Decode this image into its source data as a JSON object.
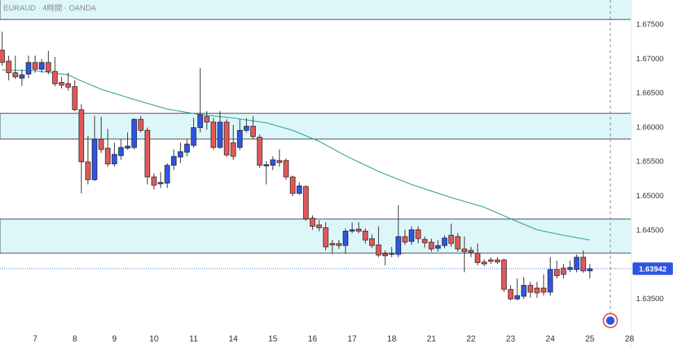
{
  "chart_data": {
    "type": "candlestick",
    "title": "EURAUD · 4時間 · OANDA",
    "up_color": "#2f55e0",
    "down_color": "#e25757",
    "open": [
      1.6713,
      1.6697,
      1.668,
      1.6672,
      1.6678,
      1.6695,
      1.6685,
      1.6695,
      1.6682,
      1.6666,
      1.6664,
      1.666,
      1.6626,
      1.655,
      1.6524,
      1.6583,
      1.657,
      1.6547,
      1.6559,
      1.657,
      1.6571,
      1.6612,
      1.6596,
      1.6528,
      1.6518,
      1.6519,
      1.6545,
      1.6557,
      1.6564,
      1.6574,
      1.66,
      1.6616,
      1.6608,
      1.6571,
      1.6608,
      1.6578,
      1.6571,
      1.6596,
      1.6602,
      1.6586,
      1.6544,
      1.6545,
      1.6552,
      1.6552,
      1.6528,
      1.6504,
      1.6514,
      1.6468,
      1.6458,
      1.6454,
      1.6431,
      1.6431,
      1.6428,
      1.6449,
      1.6452,
      1.6449,
      1.6438,
      1.6429,
      1.6416,
      1.6415,
      1.6415,
      1.6441,
      1.6434,
      1.6451,
      1.6437,
      1.6433,
      1.6424,
      1.6428,
      1.6443,
      1.6441,
      1.6423,
      1.6421,
      1.6417,
      1.6404,
      1.6407,
      1.6407,
      1.6407,
      1.6364,
      1.635,
      1.6354,
      1.637,
      1.6366,
      1.6366,
      1.636,
      1.6393,
      1.6395,
      1.6393,
      1.6393,
      1.6411,
      1.6391
    ],
    "high": [
      1.674,
      1.6705,
      1.6705,
      1.6685,
      1.6705,
      1.6705,
      1.67,
      1.6712,
      1.6703,
      1.6674,
      1.668,
      1.6669,
      1.6634,
      1.6588,
      1.6617,
      1.6616,
      1.6598,
      1.6578,
      1.6583,
      1.6593,
      1.6614,
      1.6617,
      1.66,
      1.6533,
      1.6535,
      1.6548,
      1.6568,
      1.6578,
      1.6583,
      1.6614,
      1.6687,
      1.6624,
      1.6614,
      1.6624,
      1.6612,
      1.6604,
      1.6612,
      1.6614,
      1.6617,
      1.659,
      1.6551,
      1.6558,
      1.6568,
      1.6555,
      1.653,
      1.652,
      1.6516,
      1.6472,
      1.6465,
      1.6462,
      1.6436,
      1.6436,
      1.6453,
      1.6462,
      1.6462,
      1.6453,
      1.6444,
      1.6456,
      1.6421,
      1.6426,
      1.6487,
      1.6451,
      1.6456,
      1.6456,
      1.6441,
      1.6438,
      1.6436,
      1.6443,
      1.646,
      1.6446,
      1.6441,
      1.6426,
      1.6431,
      1.6408,
      1.6411,
      1.6411,
      1.6409,
      1.637,
      1.638,
      1.6382,
      1.6375,
      1.6375,
      1.6386,
      1.6411,
      1.6406,
      1.6401,
      1.6406,
      1.6415,
      1.6421,
      1.6401
    ],
    "low": [
      1.669,
      1.6669,
      1.6671,
      1.6661,
      1.6672,
      1.668,
      1.668,
      1.6678,
      1.666,
      1.6657,
      1.6654,
      1.6624,
      1.6504,
      1.6517,
      1.6522,
      1.6563,
      1.6543,
      1.6543,
      1.6553,
      1.6568,
      1.6568,
      1.6593,
      1.6517,
      1.651,
      1.6512,
      1.6512,
      1.6538,
      1.6548,
      1.6558,
      1.6571,
      1.6593,
      1.6597,
      1.6568,
      1.6569,
      1.6557,
      1.6553,
      1.6567,
      1.6593,
      1.6583,
      1.6541,
      1.6517,
      1.6538,
      1.6543,
      1.6524,
      1.65,
      1.6502,
      1.6464,
      1.6451,
      1.6449,
      1.6421,
      1.6416,
      1.6423,
      1.6416,
      1.6446,
      1.6446,
      1.6431,
      1.6424,
      1.6411,
      1.6399,
      1.6411,
      1.6411,
      1.6429,
      1.6429,
      1.6431,
      1.6425,
      1.6419,
      1.6419,
      1.6424,
      1.6426,
      1.6419,
      1.6389,
      1.6411,
      1.6399,
      1.6398,
      1.6401,
      1.6401,
      1.636,
      1.6348,
      1.6348,
      1.635,
      1.6352,
      1.6352,
      1.6355,
      1.6355,
      1.638,
      1.638,
      1.6389,
      1.6389,
      1.6388,
      1.638
    ],
    "close": [
      1.6695,
      1.668,
      1.6674,
      1.6677,
      1.6695,
      1.6685,
      1.6695,
      1.6682,
      1.6664,
      1.6662,
      1.6659,
      1.6626,
      1.655,
      1.6524,
      1.6583,
      1.6568,
      1.6547,
      1.6561,
      1.6571,
      1.6573,
      1.6612,
      1.6596,
      1.6528,
      1.6516,
      1.652,
      1.6545,
      1.6558,
      1.6565,
      1.6576,
      1.66,
      1.6619,
      1.6608,
      1.6571,
      1.6608,
      1.656,
      1.6558,
      1.6596,
      1.6602,
      1.6587,
      1.6545,
      1.6546,
      1.6553,
      1.6549,
      1.6528,
      1.6504,
      1.6515,
      1.6467,
      1.6456,
      1.6454,
      1.6426,
      1.6429,
      1.6428,
      1.6449,
      1.6451,
      1.6449,
      1.6436,
      1.6428,
      1.6414,
      1.6413,
      1.6417,
      1.6441,
      1.6433,
      1.6451,
      1.6438,
      1.6432,
      1.6423,
      1.6428,
      1.6439,
      1.6431,
      1.6423,
      1.6419,
      1.6418,
      1.6403,
      1.6401,
      1.6405,
      1.6404,
      1.6364,
      1.635,
      1.6355,
      1.637,
      1.636,
      1.6359,
      1.636,
      1.6393,
      1.6384,
      1.6386,
      1.6396,
      1.6411,
      1.6391,
      1.63942
    ],
    "ma": {
      "color": "#2aa38f",
      "x": [
        0,
        5,
        10,
        12,
        15,
        20,
        25,
        30,
        35,
        40,
        44,
        48,
        52,
        57,
        62,
        68,
        73,
        77,
        81,
        85,
        89
      ],
      "values": [
        1.6684,
        1.6683,
        1.6677,
        1.6668,
        1.6656,
        1.6641,
        1.6627,
        1.6619,
        1.6614,
        1.6607,
        1.6596,
        1.658,
        1.6559,
        1.6536,
        1.6517,
        1.6498,
        1.6484,
        1.6467,
        1.6451,
        1.6443,
        1.6436
      ]
    },
    "zones": [
      [
        1.67577,
        1.68
      ],
      [
        1.65833,
        1.66208
      ],
      [
        1.64169,
        1.64666
      ]
    ],
    "zone_color": "#dcf6fa",
    "last_price": 1.63942,
    "current_time_x": 92.1,
    "xlim": [
      -0.32,
      95.26
    ],
    "xticks": [
      {
        "value": 5,
        "label": "7"
      },
      {
        "value": 11,
        "label": "8"
      },
      {
        "value": 17,
        "label": "9"
      },
      {
        "value": 23,
        "label": "10"
      },
      {
        "value": 29,
        "label": "11"
      },
      {
        "value": 35,
        "label": "14"
      },
      {
        "value": 41,
        "label": "15"
      },
      {
        "value": 47,
        "label": "16"
      },
      {
        "value": 53,
        "label": "17"
      },
      {
        "value": 59,
        "label": "18"
      },
      {
        "value": 65,
        "label": "21"
      },
      {
        "value": 71,
        "label": "22"
      },
      {
        "value": 77,
        "label": "23"
      },
      {
        "value": 83,
        "label": "24"
      },
      {
        "value": 89,
        "label": "25"
      },
      {
        "value": 95,
        "label": "28"
      }
    ],
    "ylim": [
      1.63094,
      1.67861
    ],
    "yticks": [
      {
        "value": 1.635,
        "label": "1.63500"
      },
      {
        "value": 1.645,
        "label": "1.64500"
      },
      {
        "value": 1.65,
        "label": "1.65000"
      },
      {
        "value": 1.655,
        "label": "1.65500"
      },
      {
        "value": 1.66,
        "label": "1.66000"
      },
      {
        "value": 1.665,
        "label": "1.66500"
      },
      {
        "value": 1.67,
        "label": "1.67000"
      },
      {
        "value": 1.675,
        "label": "1.67500"
      }
    ],
    "grid": false
  }
}
